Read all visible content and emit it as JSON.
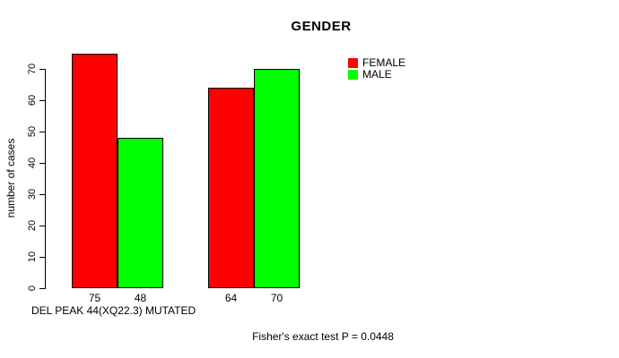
{
  "chart_data": {
    "type": "bar",
    "title": "GENDER",
    "ylabel": "number of cases",
    "ylim": [
      0,
      70
    ],
    "yticks": [
      0,
      10,
      20,
      30,
      40,
      50,
      60,
      70
    ],
    "grid": false,
    "categories": [
      "DEL PEAK 44(XQ22.3) MUTATED",
      ""
    ],
    "series": [
      {
        "name": "FEMALE",
        "color": "#ff0000",
        "values": [
          75,
          64
        ]
      },
      {
        "name": "MALE",
        "color": "#00ff00",
        "values": [
          48,
          70
        ]
      }
    ],
    "bar_value_labels": [
      "75",
      "48",
      "64",
      "70"
    ],
    "legend": {
      "position": "top-right",
      "entries": [
        {
          "label": "FEMALE",
          "color": "#ff0000"
        },
        {
          "label": "MALE",
          "color": "#00ff00"
        }
      ]
    },
    "xlabel_left": "DEL PEAK 44(XQ22.3) MUTATED",
    "annotation": "Fisher's exact test P = 0.0448",
    "axis_color": "#000000",
    "background": "#ffffff"
  }
}
